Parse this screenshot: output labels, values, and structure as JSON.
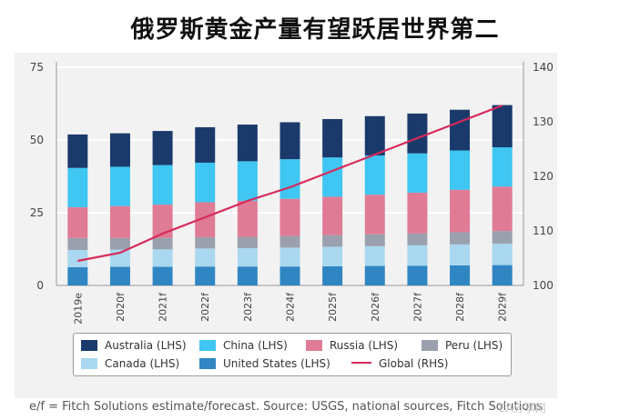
{
  "title": "俄罗斯黄金产量有望跃居世界第二",
  "source_note": "e/f = Fitch Solutions estimate/forecast. Source: USGS, national sources, Fitch Solutions",
  "watermark": "EA分享网",
  "colors": {
    "Australia": "#1a3a6b",
    "China": "#3fc6f2",
    "Russia": "#e07b95",
    "Peru": "#9aa0ad",
    "Canada": "#a9d8f0",
    "United States": "#2f86c2",
    "Global": "#d62a5a",
    "panel": "#f2f2f2"
  },
  "legend": [
    {
      "key": "Australia",
      "label": "Australia (LHS)",
      "kind": "swatch"
    },
    {
      "key": "China",
      "label": "China (LHS)",
      "kind": "swatch"
    },
    {
      "key": "Russia",
      "label": "Russia (LHS)",
      "kind": "swatch"
    },
    {
      "key": "Peru",
      "label": "Peru (LHS)",
      "kind": "swatch"
    },
    {
      "key": "Canada",
      "label": "Canada (LHS)",
      "kind": "swatch"
    },
    {
      "key": "United States",
      "label": "United States (LHS)",
      "kind": "swatch"
    },
    {
      "key": "Global",
      "label": "Global (RHS)",
      "kind": "line"
    }
  ],
  "chart_data": {
    "type": "bar",
    "stacked": true,
    "categories": [
      "2019e",
      "2020f",
      "2021f",
      "2022f",
      "2023f",
      "2024f",
      "2025f",
      "2026f",
      "2027f",
      "2028f",
      "2029f"
    ],
    "series": [
      {
        "name": "United States",
        "axis": "left",
        "values": [
          6.3,
          6.4,
          6.4,
          6.5,
          6.5,
          6.5,
          6.6,
          6.7,
          6.8,
          6.9,
          7.0
        ]
      },
      {
        "name": "Canada",
        "axis": "left",
        "values": [
          5.9,
          5.9,
          6.0,
          6.2,
          6.3,
          6.5,
          6.7,
          6.8,
          7.0,
          7.2,
          7.4
        ]
      },
      {
        "name": "Peru",
        "axis": "left",
        "values": [
          4.1,
          4.0,
          3.9,
          3.9,
          3.9,
          4.0,
          4.0,
          4.1,
          4.1,
          4.2,
          4.3
        ]
      },
      {
        "name": "Russia",
        "axis": "left",
        "values": [
          10.6,
          11.0,
          11.5,
          12.0,
          12.4,
          12.8,
          13.2,
          13.6,
          14.0,
          14.6,
          15.3
        ]
      },
      {
        "name": "China",
        "axis": "left",
        "values": [
          13.5,
          13.5,
          13.6,
          13.6,
          13.6,
          13.6,
          13.5,
          13.5,
          13.5,
          13.5,
          13.5
        ]
      },
      {
        "name": "Australia",
        "axis": "left",
        "values": [
          11.5,
          11.5,
          11.7,
          12.2,
          12.6,
          12.7,
          13.2,
          13.5,
          13.7,
          14.0,
          14.5
        ]
      },
      {
        "name": "Global",
        "axis": "right",
        "type": "line",
        "values": [
          104.5,
          106.0,
          109.5,
          112.5,
          115.5,
          118.0,
          121.0,
          124.0,
          127.0,
          130.0,
          133.0
        ]
      }
    ],
    "ylim_left": [
      0,
      75
    ],
    "yticks_left": [
      0,
      25,
      50,
      75
    ],
    "ylim_right": [
      100,
      140
    ],
    "yticks_right": [
      100,
      110,
      120,
      130,
      140
    ],
    "grid": true,
    "legend_position": "bottom"
  }
}
